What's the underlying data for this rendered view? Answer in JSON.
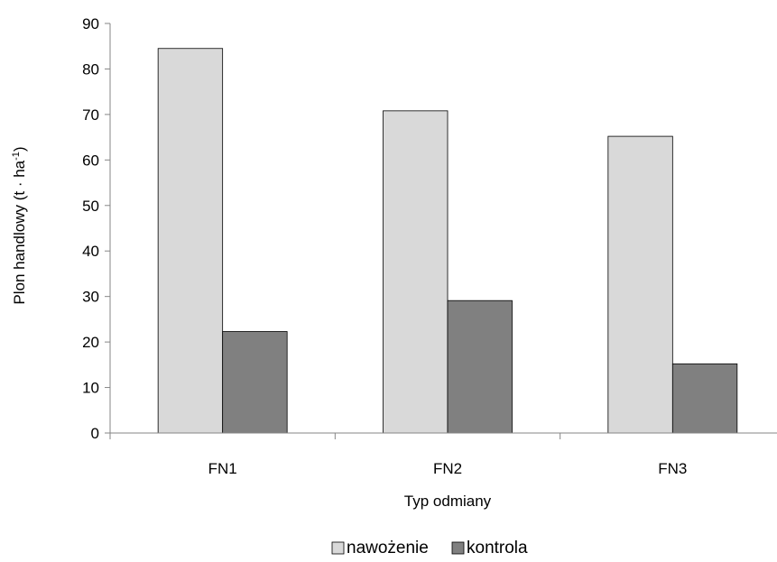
{
  "chart_data": {
    "type": "bar",
    "categories": [
      "FN1",
      "FN2",
      "FN3"
    ],
    "series": [
      {
        "name": "nawożenie",
        "values": [
          84.5,
          70.8,
          65.2
        ],
        "color": "#d9d9d9"
      },
      {
        "name": "kontrola",
        "values": [
          22.3,
          29.1,
          15.2
        ],
        "color": "#808080"
      }
    ],
    "xlabel": "Typ odmiany",
    "ylabel": {
      "main": "Plon handlowy (t · ha",
      "sup": "-1",
      "end": ")"
    },
    "ylim": [
      0,
      90
    ],
    "yticks": [
      0,
      10,
      20,
      30,
      40,
      50,
      60,
      70,
      80,
      90
    ],
    "grid": false,
    "legend_position": "bottom"
  }
}
